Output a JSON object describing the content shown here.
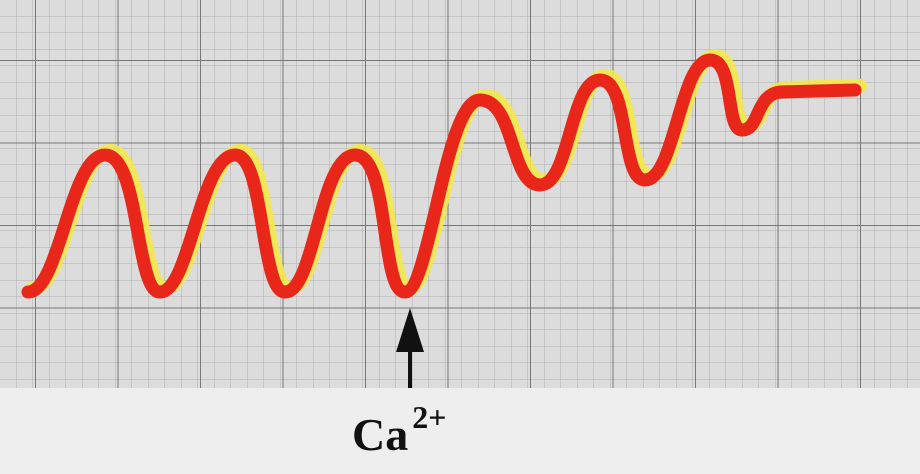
{
  "label": {
    "base": "Ca",
    "superscript": "2+"
  }
}
